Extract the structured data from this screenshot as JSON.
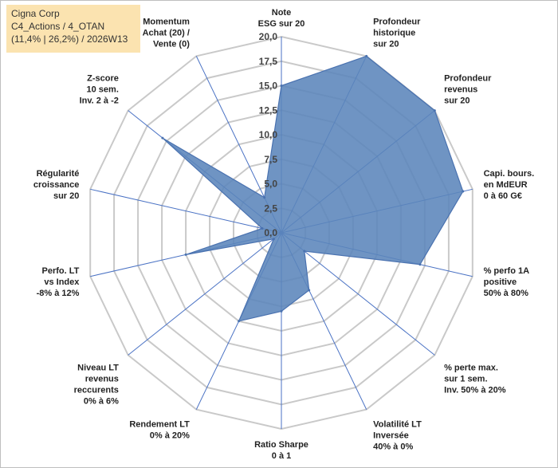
{
  "title_lines": [
    "Cigna Corp",
    "C4_Actions / 4_OTAN",
    "(11,4% | 26,2%) / 2026W13"
  ],
  "chart_data": {
    "type": "radar",
    "axis_range": [
      0,
      20
    ],
    "tick_labels": [
      "0,0",
      "2,5",
      "5,0",
      "7,5",
      "10,0",
      "12,5",
      "15,0",
      "17,5",
      "20,0"
    ],
    "axes": [
      {
        "label": [
          "Note",
          "ESG sur 20"
        ],
        "value": 15
      },
      {
        "label": [
          "Profondeur",
          "historique",
          "sur 20"
        ],
        "value": 20
      },
      {
        "label": [
          "Profondeur",
          "revenus",
          "sur 20"
        ],
        "value": 20
      },
      {
        "label": [
          "Capi. bours.",
          "en MdEUR",
          "0 à 60 G€"
        ],
        "value": 19
      },
      {
        "label": [
          "% perfo 1A",
          "positive",
          "50% à 80%"
        ],
        "value": 14.5
      },
      {
        "label": [
          "% perte max.",
          "sur 1 sem.",
          "Inv. 50% à 20%"
        ],
        "value": 3
      },
      {
        "label": [
          "Volatilité LT",
          "Inversée",
          "40% à 0%"
        ],
        "value": 6.5
      },
      {
        "label": [
          "Ratio Sharpe",
          "0 à 1"
        ],
        "value": 8
      },
      {
        "label": [
          "Rendement LT",
          "0% à 20%"
        ],
        "value": 10
      },
      {
        "label": [
          "Niveau LT",
          "revenus",
          "reccurents",
          "0% à 6%"
        ],
        "value": 1
      },
      {
        "label": [
          "Perfo. LT",
          "vs Index",
          "-8% à 12%"
        ],
        "value": 10
      },
      {
        "label": [
          "Régularité",
          "croissance",
          "sur 20"
        ],
        "value": 2
      },
      {
        "label": [
          "Z-score",
          "10 sem.",
          "Inv. 2 à -2"
        ],
        "value": 15.5
      },
      {
        "label": [
          "Momentum",
          "Achat (20) /",
          "Vente (0)"
        ],
        "value": 4
      }
    ],
    "colors": {
      "fill": "#5b85bb",
      "stroke": "#4a72b0",
      "grid": "#c9c9c9",
      "spoke": "#4a72c4"
    }
  }
}
